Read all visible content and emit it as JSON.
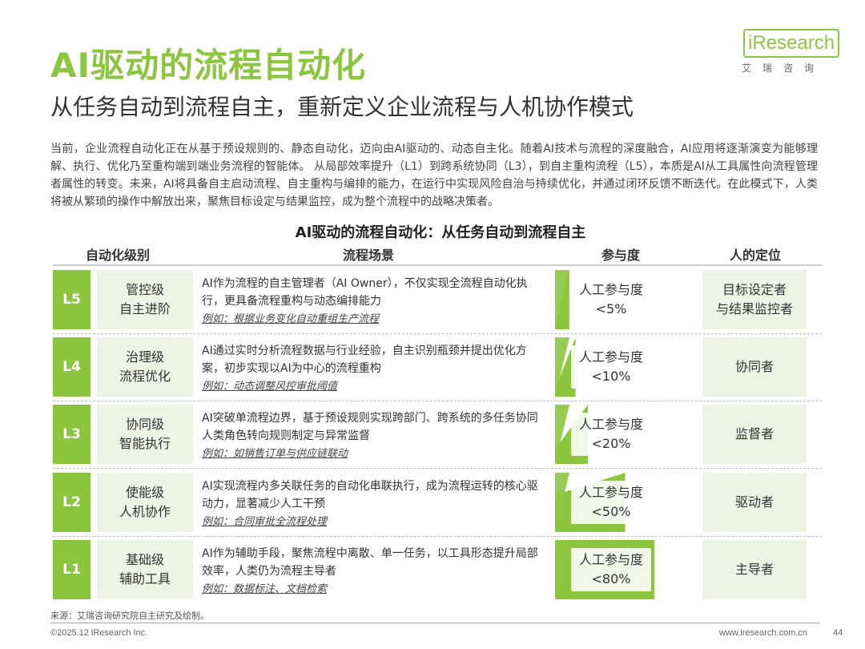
{
  "header": {
    "title": "AI驱动的流程自动化",
    "subtitle": "从任务自动到流程自主，重新定义企业流程与人机协作模式"
  },
  "logo": {
    "text": "iResearch",
    "cn": "艾瑞咨询"
  },
  "intro": "当前，企业流程自动化正在从基于预设规则的、静态自动化，迈向由AI驱动的、动态自主化。随着AI技术与流程的深度融合，AI应用将逐渐演变为能够理解、执行、优化乃至重构端到端业务流程的智能体。 从局部效率提升（L1）到跨系统协同（L3），到自主重构流程（L5），本质是AI从工具属性向流程管理者属性的转变。未来，AI将具备自主启动流程、自主重构与编排的能力，在运行中实现风险自治与持续优化，并通过闭环反馈不断迭代。在此模式下，人类将被从繁琐的操作中解放出来，聚焦目标设定与结果监控，成为整个流程中的战略决策者。",
  "table": {
    "title": "AI驱动的流程自动化：从任务自动到流程自主",
    "headers": {
      "level": "自动化级别",
      "scene": "流程场景",
      "participation": "参与度",
      "role": "人的定位"
    },
    "rows": [
      {
        "level": "L5",
        "cat1": "管控级",
        "cat2": "自主进阶",
        "scene": "AI作为流程的自主管理者（AI Owner），不仅实现全流程自动化执行，更具备流程重构与动态编排能力",
        "example": "例如：根据业务变化自动重组生产流程",
        "part_label": "人工参与度",
        "part_value": "<5%",
        "part_pct": 5,
        "role1": "目标设定者",
        "role2": "与结果监控者"
      },
      {
        "level": "L4",
        "cat1": "治理级",
        "cat2": "流程优化",
        "scene": "AI通过实时分析流程数据与行业经验，自主识别瓶颈并提出优化方案，初步实现以AI为中心的流程重构",
        "example": "例如：动态调整风控审批阈值",
        "part_label": "人工参与度",
        "part_value": "<10%",
        "part_pct": 10,
        "role1": "协同者",
        "role2": ""
      },
      {
        "level": "L3",
        "cat1": "协同级",
        "cat2": "智能执行",
        "scene": "AI突破单流程边界，基于预设规则实现跨部门、跨系统的多任务协同人类角色转向规则制定与异常监督",
        "example": "例如：如销售订单与供应链联动",
        "part_label": "人工参与度",
        "part_value": "<20%",
        "part_pct": 20,
        "role1": "监督者",
        "role2": ""
      },
      {
        "level": "L2",
        "cat1": "使能级",
        "cat2": "人机协作",
        "scene": "AI实现流程内多关联任务的自动化串联执行，成为流程运转的核心驱动力，显著减少人工干预",
        "example": "例如：合同审批全流程处理",
        "part_label": "人工参与度",
        "part_value": "<50%",
        "part_pct": 50,
        "role1": "驱动者",
        "role2": ""
      },
      {
        "level": "L1",
        "cat1": "基础级",
        "cat2": "辅助工具",
        "scene": "AI作为辅助手段，聚焦流程中离散、单一任务，以工具形态提升局部效率，人类仍为流程主导者",
        "example": "例如：数据标注、文档检索",
        "part_label": "人工参与度",
        "part_value": "<80%",
        "part_pct": 80,
        "role1": "主导者",
        "role2": ""
      }
    ]
  },
  "footer": {
    "source": "来源：艾瑞咨询研究院自主研究及绘制。",
    "copyright": "©2025.12 iResearch Inc.",
    "website": "www.iresearch.com.cn",
    "page": "44"
  },
  "colors": {
    "accent": "#8cc63f",
    "light": "#eef4e4"
  }
}
